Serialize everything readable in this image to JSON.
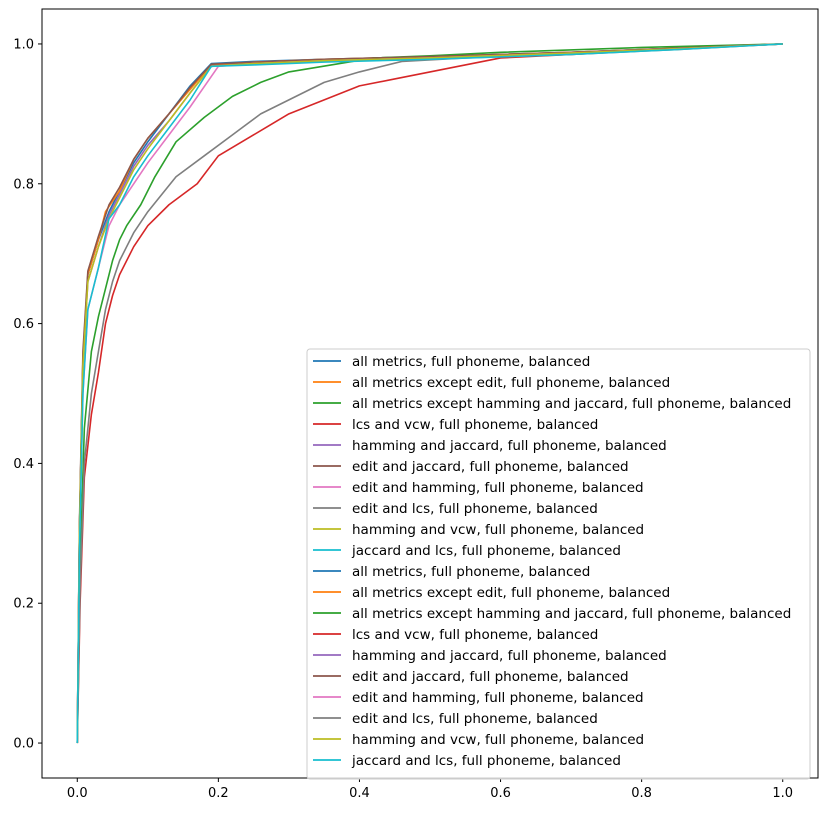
{
  "chart_data": {
    "type": "line",
    "title": "",
    "xlabel": "",
    "ylabel": "",
    "xlim": [
      -0.05,
      1.05
    ],
    "ylim": [
      -0.05,
      1.05
    ],
    "xticks": [
      "0.0",
      "0.2",
      "0.4",
      "0.6",
      "0.8",
      "1.0"
    ],
    "yticks": [
      "0.0",
      "0.2",
      "0.4",
      "0.6",
      "0.8",
      "1.0"
    ],
    "grid": false,
    "legend_position": "lower-right",
    "series": [
      {
        "name": "all metrics, full phoneme, balanced",
        "color": "#1f77b4",
        "x": [
          0,
          0.003,
          0.008,
          0.015,
          0.03,
          0.045,
          0.06,
          0.08,
          0.1,
          0.13,
          0.16,
          0.19,
          0.25,
          0.35,
          0.5,
          0.7,
          0.85,
          1.0
        ],
        "y": [
          0,
          0.3,
          0.55,
          0.67,
          0.72,
          0.76,
          0.79,
          0.83,
          0.86,
          0.9,
          0.94,
          0.972,
          0.975,
          0.978,
          0.982,
          0.988,
          0.994,
          1.0
        ]
      },
      {
        "name": "all metrics except edit, full phoneme, balanced",
        "color": "#ff7f0e",
        "x": [
          0,
          0.003,
          0.008,
          0.015,
          0.03,
          0.04,
          0.06,
          0.08,
          0.1,
          0.13,
          0.16,
          0.19,
          0.25,
          0.35,
          0.5,
          0.7,
          0.85,
          1.0
        ],
        "y": [
          0,
          0.3,
          0.55,
          0.67,
          0.72,
          0.76,
          0.79,
          0.835,
          0.865,
          0.9,
          0.935,
          0.97,
          0.974,
          0.978,
          0.982,
          0.988,
          0.994,
          1.0
        ]
      },
      {
        "name": "all metrics except hamming and jaccard, full phoneme, balanced",
        "color": "#2ca02c",
        "x": [
          0,
          0.004,
          0.01,
          0.02,
          0.03,
          0.04,
          0.05,
          0.06,
          0.07,
          0.09,
          0.11,
          0.14,
          0.18,
          0.22,
          0.26,
          0.3,
          0.36,
          0.42,
          0.5,
          0.6,
          0.8,
          1.0
        ],
        "y": [
          0,
          0.25,
          0.45,
          0.56,
          0.61,
          0.65,
          0.69,
          0.72,
          0.74,
          0.77,
          0.81,
          0.86,
          0.895,
          0.925,
          0.945,
          0.96,
          0.97,
          0.98,
          0.983,
          0.988,
          0.995,
          1.0
        ]
      },
      {
        "name": "lcs and vcw, full phoneme, balanced",
        "color": "#d62728",
        "x": [
          0,
          0.004,
          0.01,
          0.02,
          0.03,
          0.04,
          0.05,
          0.06,
          0.08,
          0.1,
          0.13,
          0.17,
          0.2,
          0.25,
          0.3,
          0.35,
          0.4,
          0.45,
          0.5,
          0.55,
          0.6,
          0.7,
          0.85,
          1.0
        ],
        "y": [
          0,
          0.2,
          0.38,
          0.47,
          0.53,
          0.6,
          0.64,
          0.67,
          0.71,
          0.74,
          0.77,
          0.8,
          0.84,
          0.87,
          0.9,
          0.92,
          0.94,
          0.95,
          0.96,
          0.97,
          0.98,
          0.985,
          0.993,
          1.0
        ]
      },
      {
        "name": "hamming and jaccard, full phoneme, balanced",
        "color": "#9467bd",
        "x": [
          0,
          0.003,
          0.008,
          0.015,
          0.03,
          0.045,
          0.06,
          0.08,
          0.1,
          0.13,
          0.16,
          0.19,
          0.25,
          0.35,
          0.5,
          0.7,
          0.85,
          1.0
        ],
        "y": [
          0,
          0.3,
          0.54,
          0.66,
          0.71,
          0.755,
          0.785,
          0.825,
          0.855,
          0.89,
          0.93,
          0.968,
          0.972,
          0.976,
          0.98,
          0.987,
          0.993,
          1.0
        ]
      },
      {
        "name": "edit and jaccard, full phoneme, balanced",
        "color": "#8c564b",
        "x": [
          0,
          0.003,
          0.008,
          0.015,
          0.03,
          0.045,
          0.06,
          0.08,
          0.1,
          0.13,
          0.16,
          0.19,
          0.25,
          0.35,
          0.5,
          0.7,
          0.85,
          1.0
        ],
        "y": [
          0,
          0.31,
          0.56,
          0.675,
          0.725,
          0.77,
          0.795,
          0.835,
          0.865,
          0.9,
          0.938,
          0.971,
          0.974,
          0.978,
          0.982,
          0.988,
          0.994,
          1.0
        ]
      },
      {
        "name": "edit and hamming, full phoneme, balanced",
        "color": "#e377c2",
        "x": [
          0,
          0.003,
          0.008,
          0.015,
          0.03,
          0.045,
          0.06,
          0.08,
          0.1,
          0.13,
          0.16,
          0.2,
          0.25,
          0.35,
          0.5,
          0.7,
          0.85,
          1.0
        ],
        "y": [
          0,
          0.28,
          0.5,
          0.62,
          0.68,
          0.74,
          0.77,
          0.8,
          0.83,
          0.87,
          0.91,
          0.968,
          0.972,
          0.976,
          0.98,
          0.987,
          0.993,
          1.0
        ]
      },
      {
        "name": "edit and lcs, full phoneme, balanced",
        "color": "#7f7f7f",
        "x": [
          0,
          0.004,
          0.01,
          0.02,
          0.03,
          0.04,
          0.05,
          0.06,
          0.08,
          0.1,
          0.14,
          0.18,
          0.22,
          0.26,
          0.3,
          0.35,
          0.4,
          0.46,
          0.55,
          0.7,
          0.85,
          1.0
        ],
        "y": [
          0,
          0.22,
          0.4,
          0.5,
          0.56,
          0.62,
          0.66,
          0.69,
          0.73,
          0.76,
          0.81,
          0.84,
          0.87,
          0.9,
          0.92,
          0.945,
          0.96,
          0.975,
          0.98,
          0.985,
          0.992,
          1.0
        ]
      },
      {
        "name": "hamming and vcw, full phoneme, balanced",
        "color": "#bcbd22",
        "x": [
          0,
          0.003,
          0.008,
          0.015,
          0.03,
          0.045,
          0.06,
          0.08,
          0.1,
          0.13,
          0.16,
          0.19,
          0.25,
          0.35,
          0.5,
          0.7,
          0.85,
          1.0
        ],
        "y": [
          0,
          0.3,
          0.54,
          0.66,
          0.71,
          0.75,
          0.78,
          0.82,
          0.85,
          0.89,
          0.93,
          0.968,
          0.972,
          0.976,
          0.98,
          0.987,
          0.993,
          1.0
        ]
      },
      {
        "name": "jaccard and lcs, full phoneme, balanced",
        "color": "#17becf",
        "x": [
          0,
          0.003,
          0.008,
          0.015,
          0.03,
          0.045,
          0.06,
          0.08,
          0.1,
          0.13,
          0.16,
          0.19,
          0.25,
          0.35,
          0.5,
          0.7,
          0.85,
          1.0
        ],
        "y": [
          0,
          0.27,
          0.5,
          0.62,
          0.68,
          0.75,
          0.77,
          0.81,
          0.84,
          0.88,
          0.92,
          0.968,
          0.97,
          0.974,
          0.978,
          0.985,
          0.992,
          1.0
        ]
      }
    ],
    "legend_entries": [
      {
        "name": "all metrics, full phoneme, balanced",
        "color": "#1f77b4"
      },
      {
        "name": "all metrics except edit, full phoneme, balanced",
        "color": "#ff7f0e"
      },
      {
        "name": "all metrics except hamming and jaccard, full phoneme, balanced",
        "color": "#2ca02c"
      },
      {
        "name": "lcs and vcw, full phoneme, balanced",
        "color": "#d62728"
      },
      {
        "name": "hamming and jaccard, full phoneme, balanced",
        "color": "#9467bd"
      },
      {
        "name": "edit and jaccard, full phoneme, balanced",
        "color": "#8c564b"
      },
      {
        "name": "edit and hamming, full phoneme, balanced",
        "color": "#e377c2"
      },
      {
        "name": "edit and lcs, full phoneme, balanced",
        "color": "#7f7f7f"
      },
      {
        "name": "hamming and vcw, full phoneme, balanced",
        "color": "#bcbd22"
      },
      {
        "name": "jaccard and lcs, full phoneme, balanced",
        "color": "#17becf"
      },
      {
        "name": "all metrics, full phoneme, balanced",
        "color": "#1f77b4"
      },
      {
        "name": "all metrics except edit, full phoneme, balanced",
        "color": "#ff7f0e"
      },
      {
        "name": "all metrics except hamming and jaccard, full phoneme, balanced",
        "color": "#2ca02c"
      },
      {
        "name": "lcs and vcw, full phoneme, balanced",
        "color": "#d62728"
      },
      {
        "name": "hamming and jaccard, full phoneme, balanced",
        "color": "#9467bd"
      },
      {
        "name": "edit and jaccard, full phoneme, balanced",
        "color": "#8c564b"
      },
      {
        "name": "edit and hamming, full phoneme, balanced",
        "color": "#e377c2"
      },
      {
        "name": "edit and lcs, full phoneme, balanced",
        "color": "#7f7f7f"
      },
      {
        "name": "hamming and vcw, full phoneme, balanced",
        "color": "#bcbd22"
      },
      {
        "name": "jaccard and lcs, full phoneme, balanced",
        "color": "#17becf"
      }
    ]
  }
}
